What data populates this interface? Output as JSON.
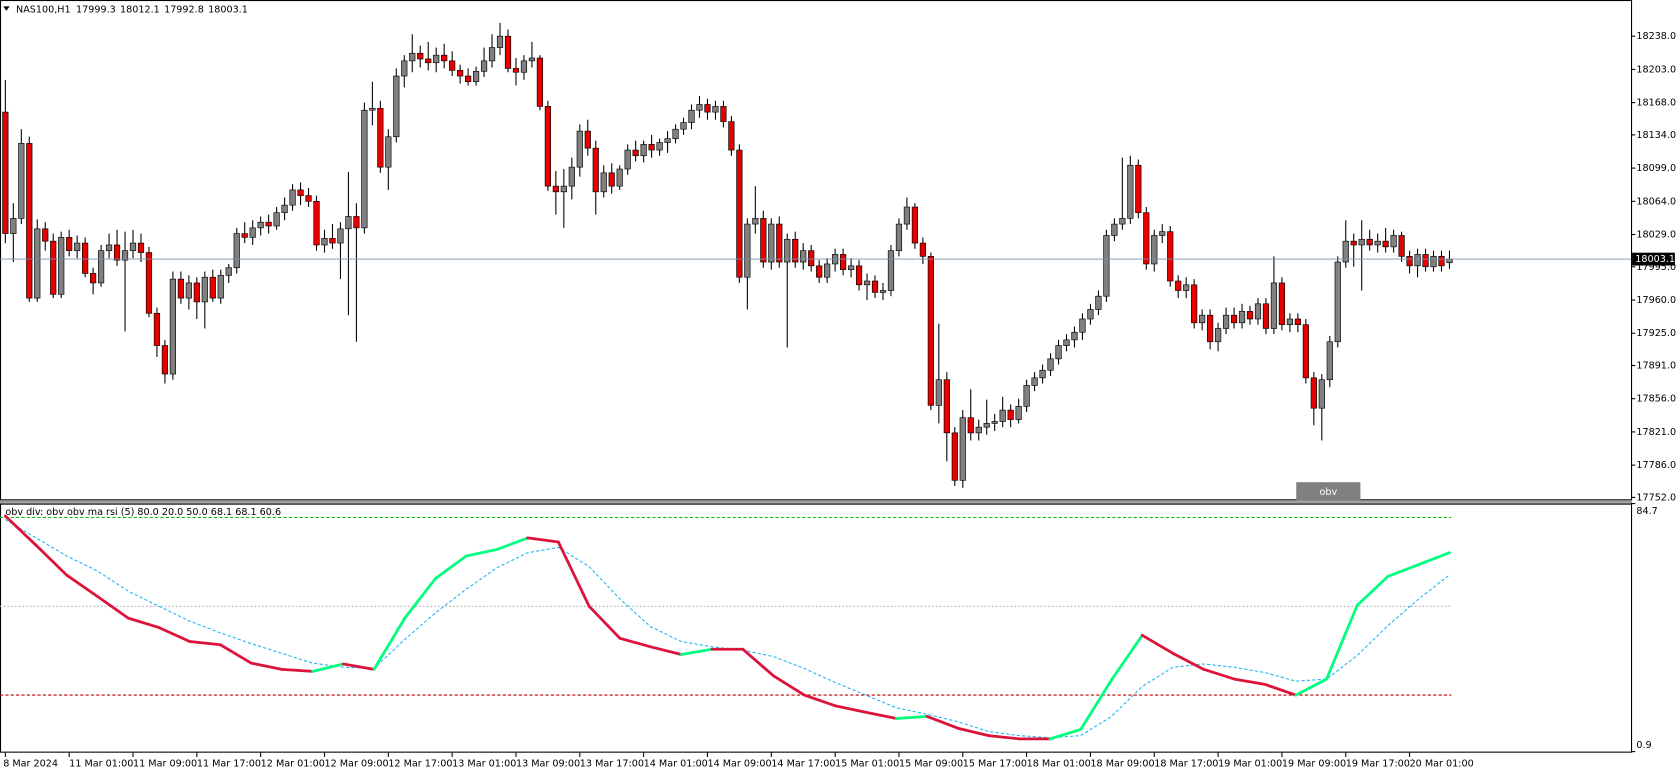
{
  "chart_data": {
    "type": "candlestick",
    "symbol": "NAS100,H1",
    "bull_color": "#808080",
    "bear_color": "#e60000",
    "ylim": [
      17750,
      18275
    ],
    "yticks": [
      {
        "value": 18238,
        "label": "18238.0"
      },
      {
        "value": 18203,
        "label": "18203.0"
      },
      {
        "value": 18168,
        "label": "18168.0"
      },
      {
        "value": 18134,
        "label": "18134.0"
      },
      {
        "value": 18099,
        "label": "18099.0"
      },
      {
        "value": 18064,
        "label": "18064.0"
      },
      {
        "value": 18029,
        "label": "18029.0"
      },
      {
        "value": 17995,
        "label": "17995.0"
      },
      {
        "value": 17960,
        "label": "17960.0"
      },
      {
        "value": 17925,
        "label": "17925.0"
      },
      {
        "value": 17891,
        "label": "17891.0"
      },
      {
        "value": 17856,
        "label": "17856.0"
      },
      {
        "value": 17821,
        "label": "17821.0"
      },
      {
        "value": 17786,
        "label": "17786.0"
      },
      {
        "value": 17752,
        "label": "17752.0"
      }
    ],
    "xticks": [
      {
        "value": 0,
        "label": "8 Mar 2024"
      },
      {
        "value": 8,
        "label": "11 Mar 01:00"
      },
      {
        "value": 16,
        "label": "11 Mar 09:00"
      },
      {
        "value": 24,
        "label": "11 Mar 17:00"
      },
      {
        "value": 32,
        "label": "12 Mar 01:00"
      },
      {
        "value": 40,
        "label": "12 Mar 09:00"
      },
      {
        "value": 48,
        "label": "12 Mar 17:00"
      },
      {
        "value": 56,
        "label": "13 Mar 01:00"
      },
      {
        "value": 64,
        "label": "13 Mar 09:00"
      },
      {
        "value": 72,
        "label": "13 Mar 17:00"
      },
      {
        "value": 80,
        "label": "14 Mar 01:00"
      },
      {
        "value": 88,
        "label": "14 Mar 09:00"
      },
      {
        "value": 96,
        "label": "14 Mar 17:00"
      },
      {
        "value": 104,
        "label": "15 Mar 01:00"
      },
      {
        "value": 112,
        "label": "15 Mar 09:00"
      },
      {
        "value": 120,
        "label": "15 Mar 17:00"
      },
      {
        "value": 128,
        "label": "18 Mar 01:00"
      },
      {
        "value": 136,
        "label": "18 Mar 09:00"
      },
      {
        "value": 144,
        "label": "18 Mar 17:00"
      },
      {
        "value": 152,
        "label": "19 Mar 01:00"
      },
      {
        "value": 160,
        "label": "19 Mar 09:00"
      },
      {
        "value": 168,
        "label": "19 Mar 17:00"
      },
      {
        "value": 176,
        "label": "20 Mar 01:00"
      }
    ],
    "ohlc": [
      [
        18158,
        18192,
        18020,
        18030
      ],
      [
        18030,
        18062,
        18000,
        18046
      ],
      [
        18046,
        18140,
        18040,
        18125
      ],
      [
        18125,
        18132,
        17958,
        17962
      ],
      [
        17962,
        18045,
        17958,
        18035
      ],
      [
        18035,
        18042,
        18012,
        18022
      ],
      [
        18022,
        18030,
        17962,
        17966
      ],
      [
        17966,
        18032,
        17962,
        18026
      ],
      [
        18026,
        18034,
        18006,
        18012
      ],
      [
        18012,
        18028,
        18004,
        18020
      ],
      [
        18020,
        18026,
        17984,
        17988
      ],
      [
        17988,
        17994,
        17966,
        17978
      ],
      [
        17978,
        18018,
        17974,
        18012
      ],
      [
        18012,
        18030,
        18004,
        18018
      ],
      [
        18018,
        18034,
        17996,
        18002
      ],
      [
        18002,
        18032,
        17927,
        18012
      ],
      [
        18012,
        18034,
        18004,
        18020
      ],
      [
        18020,
        18030,
        18000,
        18010
      ],
      [
        18010,
        18016,
        17942,
        17946
      ],
      [
        17946,
        17952,
        17900,
        17912
      ],
      [
        17912,
        17918,
        17872,
        17882
      ],
      [
        17882,
        17990,
        17876,
        17982
      ],
      [
        17982,
        17990,
        17956,
        17962
      ],
      [
        17962,
        17986,
        17950,
        17978
      ],
      [
        17978,
        17984,
        17940,
        17958
      ],
      [
        17958,
        17990,
        17930,
        17984
      ],
      [
        17984,
        17992,
        17958,
        17962
      ],
      [
        17962,
        17992,
        17956,
        17986
      ],
      [
        17986,
        17998,
        17978,
        17994
      ],
      [
        17994,
        18036,
        17988,
        18030
      ],
      [
        18030,
        18042,
        18020,
        18026
      ],
      [
        18026,
        18044,
        18018,
        18036
      ],
      [
        18036,
        18048,
        18028,
        18042
      ],
      [
        18042,
        18050,
        18030,
        18038
      ],
      [
        18038,
        18058,
        18034,
        18052
      ],
      [
        18052,
        18068,
        18044,
        18060
      ],
      [
        18060,
        18082,
        18054,
        18076
      ],
      [
        18076,
        18084,
        18060,
        18070
      ],
      [
        18070,
        18078,
        18058,
        18064
      ],
      [
        18064,
        18070,
        18012,
        18018
      ],
      [
        18018,
        18034,
        18010,
        18025
      ],
      [
        18025,
        18040,
        18014,
        18020
      ],
      [
        18020,
        18042,
        17982,
        18035
      ],
      [
        18035,
        18095,
        17944,
        18048
      ],
      [
        18048,
        18062,
        17916,
        18036
      ],
      [
        18036,
        18168,
        18030,
        18160
      ],
      [
        18160,
        18190,
        18144,
        18162
      ],
      [
        18162,
        18170,
        18094,
        18100
      ],
      [
        18100,
        18140,
        18076,
        18132
      ],
      [
        18132,
        18204,
        18126,
        18196
      ],
      [
        18196,
        18218,
        18184,
        18212
      ],
      [
        18212,
        18240,
        18200,
        18220
      ],
      [
        18220,
        18228,
        18205,
        18214
      ],
      [
        18214,
        18232,
        18202,
        18210
      ],
      [
        18210,
        18226,
        18200,
        18218
      ],
      [
        18218,
        18230,
        18204,
        18212
      ],
      [
        18212,
        18222,
        18196,
        18202
      ],
      [
        18202,
        18208,
        18188,
        18196
      ],
      [
        18196,
        18204,
        18186,
        18190
      ],
      [
        18190,
        18206,
        18186,
        18201
      ],
      [
        18201,
        18226,
        18195,
        18212
      ],
      [
        18212,
        18240,
        18205,
        18226
      ],
      [
        18226,
        18252,
        18218,
        18238
      ],
      [
        18238,
        18245,
        18200,
        18204
      ],
      [
        18204,
        18215,
        18186,
        18200
      ],
      [
        18200,
        18218,
        18192,
        18212
      ],
      [
        18212,
        18232,
        18205,
        18215
      ],
      [
        18215,
        18218,
        18160,
        18164
      ],
      [
        18164,
        18170,
        18075,
        18080
      ],
      [
        18080,
        18096,
        18050,
        18074
      ],
      [
        18074,
        18098,
        18036,
        18080
      ],
      [
        18080,
        18110,
        18066,
        18100
      ],
      [
        18100,
        18145,
        18090,
        18138
      ],
      [
        18138,
        18150,
        18112,
        18120
      ],
      [
        18120,
        18128,
        18050,
        18074
      ],
      [
        18074,
        18102,
        18068,
        18094
      ],
      [
        18094,
        18104,
        18072,
        18080
      ],
      [
        18080,
        18102,
        18076,
        18098
      ],
      [
        18098,
        18124,
        18092,
        18118
      ],
      [
        18118,
        18128,
        18106,
        18112
      ],
      [
        18112,
        18128,
        18105,
        18124
      ],
      [
        18124,
        18134,
        18110,
        18118
      ],
      [
        18118,
        18130,
        18112,
        18126
      ],
      [
        18126,
        18138,
        18115,
        18130
      ],
      [
        18130,
        18145,
        18125,
        18140
      ],
      [
        18140,
        18152,
        18134,
        18147
      ],
      [
        18147,
        18166,
        18140,
        18160
      ],
      [
        18160,
        18175,
        18152,
        18166
      ],
      [
        18166,
        18172,
        18150,
        18158
      ],
      [
        18158,
        18170,
        18150,
        18164
      ],
      [
        18164,
        18170,
        18142,
        18148
      ],
      [
        18148,
        18154,
        18112,
        18118
      ],
      [
        18118,
        18124,
        17978,
        17984
      ],
      [
        17984,
        18046,
        17950,
        18040
      ],
      [
        18040,
        18080,
        18030,
        18046
      ],
      [
        18046,
        18054,
        17994,
        18000
      ],
      [
        18000,
        18046,
        17992,
        18040
      ],
      [
        18040,
        18048,
        17994,
        18000
      ],
      [
        18000,
        18030,
        17910,
        18024
      ],
      [
        18024,
        18032,
        17994,
        18000
      ],
      [
        18000,
        18020,
        17992,
        18012
      ],
      [
        18012,
        18018,
        17990,
        17996
      ],
      [
        17996,
        18002,
        17978,
        17984
      ],
      [
        17984,
        18004,
        17978,
        17998
      ],
      [
        17998,
        18014,
        17990,
        18008
      ],
      [
        18008,
        18014,
        17986,
        17992
      ],
      [
        17992,
        18004,
        17984,
        17996
      ],
      [
        17996,
        18002,
        17970,
        17976
      ],
      [
        17976,
        17988,
        17960,
        17980
      ],
      [
        17980,
        17986,
        17962,
        17968
      ],
      [
        17968,
        17978,
        17960,
        17970
      ],
      [
        17970,
        18018,
        17964,
        18012
      ],
      [
        18012,
        18046,
        18006,
        18040
      ],
      [
        18040,
        18068,
        18034,
        18058
      ],
      [
        18058,
        18062,
        18014,
        18020
      ],
      [
        18020,
        18026,
        17998,
        18006
      ],
      [
        18006,
        18010,
        17844,
        17849
      ],
      [
        17849,
        17935,
        17830,
        17876
      ],
      [
        17876,
        17884,
        17790,
        17820
      ],
      [
        17820,
        17826,
        17764,
        17770
      ],
      [
        17770,
        17844,
        17762,
        17836
      ],
      [
        17836,
        17866,
        17812,
        17820
      ],
      [
        17820,
        17834,
        17812,
        17826
      ],
      [
        17826,
        17855,
        17818,
        17830
      ],
      [
        17830,
        17840,
        17822,
        17832
      ],
      [
        17832,
        17858,
        17826,
        17844
      ],
      [
        17844,
        17850,
        17826,
        17834
      ],
      [
        17834,
        17856,
        17830,
        17848
      ],
      [
        17848,
        17876,
        17842,
        17870
      ],
      [
        17870,
        17884,
        17864,
        17878
      ],
      [
        17878,
        17892,
        17872,
        17886
      ],
      [
        17886,
        17904,
        17880,
        17898
      ],
      [
        17898,
        17918,
        17892,
        17912
      ],
      [
        17912,
        17924,
        17906,
        17918
      ],
      [
        17918,
        17932,
        17910,
        17926
      ],
      [
        17926,
        17946,
        17918,
        17940
      ],
      [
        17940,
        17956,
        17934,
        17950
      ],
      [
        17950,
        17970,
        17944,
        17964
      ],
      [
        17964,
        18034,
        17958,
        18028
      ],
      [
        18028,
        18046,
        18022,
        18040
      ],
      [
        18040,
        18110,
        18034,
        18046
      ],
      [
        18046,
        18112,
        18040,
        18102
      ],
      [
        18102,
        18108,
        18046,
        18052
      ],
      [
        18052,
        18058,
        17992,
        17998
      ],
      [
        17998,
        18034,
        17990,
        18028
      ],
      [
        18028,
        18040,
        18020,
        18032
      ],
      [
        18032,
        18038,
        17974,
        17980
      ],
      [
        17980,
        17986,
        17962,
        17970
      ],
      [
        17970,
        17984,
        17962,
        17976
      ],
      [
        17976,
        17982,
        17930,
        17936
      ],
      [
        17936,
        17950,
        17928,
        17944
      ],
      [
        17944,
        17950,
        17908,
        17916
      ],
      [
        17916,
        17936,
        17906,
        17930
      ],
      [
        17930,
        17952,
        17924,
        17944
      ],
      [
        17944,
        17952,
        17930,
        17936
      ],
      [
        17936,
        17956,
        17930,
        17948
      ],
      [
        17948,
        17954,
        17934,
        17940
      ],
      [
        17940,
        17962,
        17934,
        17956
      ],
      [
        17956,
        17962,
        17924,
        17930
      ],
      [
        17930,
        18006,
        17924,
        17978
      ],
      [
        17978,
        17984,
        17928,
        17934
      ],
      [
        17934,
        17946,
        17926,
        17940
      ],
      [
        17940,
        17946,
        17926,
        17934
      ],
      [
        17934,
        17940,
        17872,
        17878
      ],
      [
        17878,
        17884,
        17828,
        17846
      ],
      [
        17846,
        17882,
        17812,
        17876
      ],
      [
        17876,
        17922,
        17868,
        17916
      ],
      [
        17916,
        18006,
        17910,
        18000
      ],
      [
        18000,
        18044,
        17994,
        18022
      ],
      [
        18022,
        18030,
        17995,
        18018
      ],
      [
        18018,
        18044,
        17970,
        18024
      ],
      [
        18024,
        18034,
        18012,
        18018
      ],
      [
        18018,
        18030,
        18010,
        18022
      ],
      [
        18022,
        18036,
        18010,
        18016
      ],
      [
        18016,
        18034,
        18010,
        18028
      ],
      [
        18028,
        18032,
        18000,
        18006
      ],
      [
        18006,
        18012,
        17988,
        17996
      ],
      [
        17996,
        18014,
        17984,
        18008
      ],
      [
        18008,
        18014,
        17990,
        17995
      ],
      [
        17995,
        18012,
        17990,
        18006
      ],
      [
        18006,
        18012,
        17990,
        17996
      ],
      [
        17999.3,
        18012.1,
        17992.8,
        18003.1
      ]
    ],
    "button": "obv",
    "indicator": {
      "type": "line",
      "title": "obv div: obv obv ma rsi (5) 80.0 20.0 50.0 68.1 68.1 60.6",
      "ylim": [
        0.9,
        84.7
      ],
      "yticks": [
        84.7,
        0.9
      ],
      "levels": [
        {
          "value": 80,
          "color": "#00c000"
        },
        {
          "value": 50,
          "color": "#b0b0b0"
        },
        {
          "value": 20,
          "color": "#c00000"
        }
      ],
      "rsi": {
        "up_color": "#00ff7f",
        "down_color": "#dc143c",
        "values": [
          80.5,
          70.6,
          60.5,
          53.3,
          46.0,
          42.8,
          38.1,
          37.0,
          30.8,
          28.7,
          28.0,
          30.5,
          28.7,
          46.0,
          59.4,
          67.0,
          69.2,
          73.1,
          71.7,
          50.0,
          39.2,
          36.3,
          33.7,
          35.5,
          35.5,
          26.5,
          20.0,
          16.4,
          14.2,
          12.1,
          12.8,
          8.8,
          6.3,
          5.2,
          5.2,
          8.4,
          25.1,
          40.2,
          34.1,
          28.7,
          25.4,
          23.6,
          20.0,
          25.4,
          50.4,
          60.1,
          64.1,
          68.1
        ]
      },
      "ma": {
        "color": "#1eb4f0",
        "values": [
          79.3,
          73.1,
          67.0,
          61.9,
          55.1,
          50.0,
          45.0,
          41.0,
          37.4,
          34.1,
          30.8,
          29.4,
          29.0,
          38.8,
          47.8,
          55.8,
          63.0,
          68.1,
          69.9,
          63.4,
          52.5,
          43.1,
          38.1,
          36.3,
          35.2,
          33.0,
          29.0,
          24.3,
          20.0,
          15.7,
          13.5,
          11.0,
          7.7,
          6.3,
          5.6,
          6.3,
          12.8,
          22.9,
          29.4,
          30.5,
          29.4,
          27.6,
          24.7,
          25.4,
          33.4,
          43.5,
          52.5,
          60.6
        ]
      }
    }
  }
}
